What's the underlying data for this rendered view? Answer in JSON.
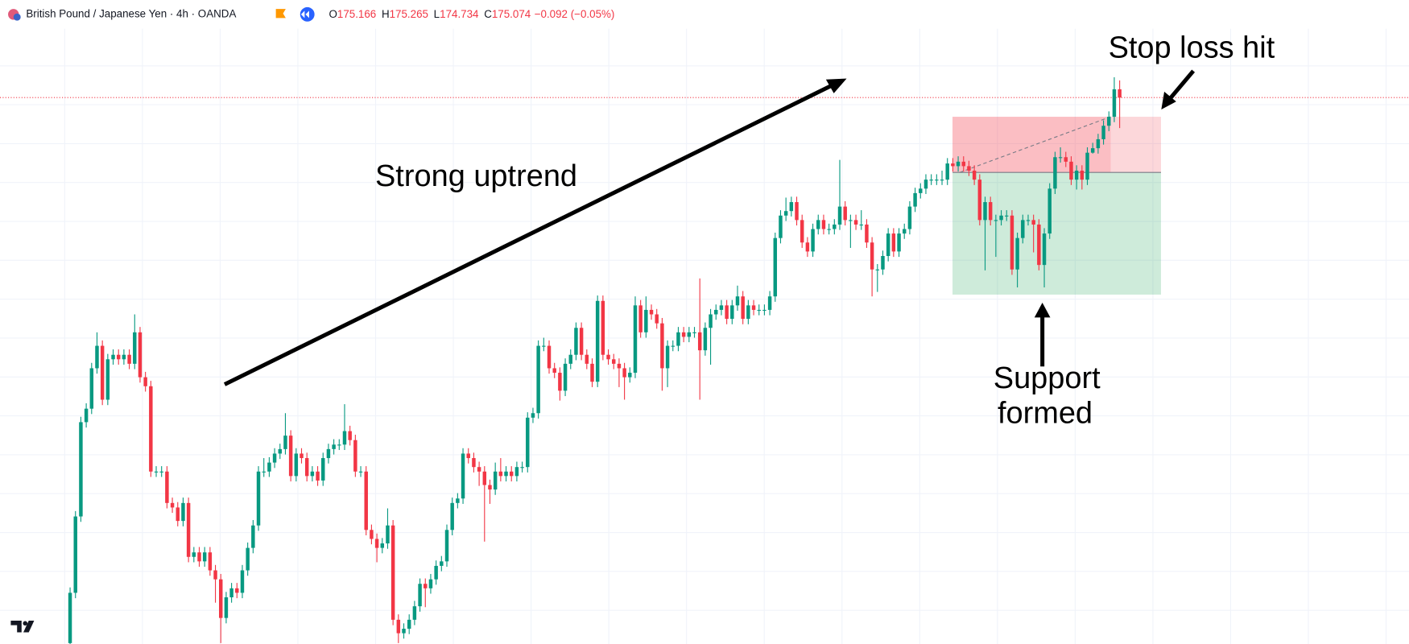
{
  "chart_data": {
    "type": "candlestick",
    "header": {
      "symbol": "British Pound / Japanese Yen · 4h · OANDA",
      "ohlc_labels": [
        "O",
        "H",
        "L",
        "C"
      ],
      "ohlc_values": [
        175.166,
        175.265,
        174.734,
        175.074
      ],
      "change": "−0.092 (−0.05%)"
    },
    "annotations": {
      "uptrend": "Strong uptrend",
      "stop": "Stop loss hit",
      "support": [
        "Support",
        "formed"
      ]
    },
    "up_color": "#089981",
    "down_color": "#f23645",
    "grid": true,
    "ylim": [
      168.99,
      176.16
    ],
    "position": {
      "stop": 174.86,
      "entry": 174.24,
      "target": 172.88
    },
    "open": [
      169.0,
      169.56,
      170.41,
      171.46,
      171.61,
      172.06,
      172.31,
      171.71,
      172.16,
      172.21,
      172.16,
      172.21,
      172.11,
      172.46,
      171.96,
      171.86,
      170.91,
      170.91,
      170.91,
      170.56,
      170.51,
      170.36,
      170.56,
      169.96,
      170.01,
      169.91,
      170.01,
      169.81,
      169.71,
      169.28,
      169.51,
      169.61,
      169.56,
      169.81,
      170.06,
      170.31,
      170.91,
      170.91,
      171.01,
      171.11,
      171.16,
      171.31,
      170.86,
      171.11,
      171.06,
      170.86,
      170.91,
      170.81,
      171.06,
      171.16,
      171.21,
      171.21,
      171.36,
      171.26,
      170.91,
      170.91,
      170.26,
      170.16,
      170.06,
      170.11,
      170.31,
      169.26,
      169.11,
      169.16,
      169.26,
      169.41,
      169.66,
      169.61,
      169.71,
      169.86,
      169.91,
      170.26,
      170.56,
      170.61,
      171.11,
      171.06,
      170.96,
      170.91,
      170.76,
      170.71,
      170.91,
      170.86,
      170.91,
      170.86,
      170.96,
      170.96,
      171.51,
      171.56,
      172.31,
      172.31,
      172.06,
      172.01,
      171.81,
      172.11,
      172.21,
      172.51,
      172.21,
      172.11,
      171.91,
      172.81,
      172.21,
      172.16,
      172.11,
      172.06,
      171.96,
      172.01,
      172.76,
      172.46,
      172.71,
      172.66,
      172.56,
      172.06,
      172.31,
      172.31,
      172.46,
      172.41,
      172.46,
      172.46,
      172.26,
      172.51,
      172.66,
      172.71,
      172.76,
      172.61,
      172.76,
      172.86,
      172.61,
      172.76,
      172.71,
      172.71,
      172.71,
      172.86,
      173.51,
      173.76,
      173.81,
      173.91,
      173.71,
      173.46,
      173.36,
      173.61,
      173.71,
      173.61,
      173.61,
      173.66,
      173.86,
      173.71,
      173.71,
      173.66,
      173.66,
      173.46,
      173.16,
      173.16,
      173.31,
      173.56,
      173.36,
      173.56,
      173.61,
      173.86,
      174.01,
      174.06,
      174.16,
      174.16,
      174.16,
      174.16,
      174.34,
      174.31,
      174.36,
      174.31,
      174.26,
      174.16,
      173.71,
      173.91,
      173.71,
      173.71,
      173.76,
      173.76,
      173.16,
      173.51,
      173.71,
      173.71,
      173.66,
      173.21,
      173.56,
      174.06,
      174.41,
      174.41,
      174.36,
      174.16,
      174.26,
      174.16,
      174.46,
      174.51,
      174.61,
      174.76,
      174.86,
      175.166
    ],
    "high": [
      169.62,
      170.47,
      171.52,
      171.67,
      172.12,
      172.46,
      172.37,
      172.22,
      172.27,
      172.27,
      172.27,
      172.27,
      172.66,
      172.52,
      172.02,
      171.92,
      170.97,
      170.97,
      170.97,
      170.62,
      170.57,
      170.62,
      170.62,
      170.07,
      170.07,
      170.07,
      170.07,
      169.87,
      169.77,
      169.57,
      169.67,
      169.67,
      169.87,
      170.12,
      170.37,
      170.97,
      171.06,
      171.07,
      171.17,
      171.22,
      171.56,
      171.37,
      171.17,
      171.17,
      171.12,
      170.97,
      170.97,
      171.12,
      171.22,
      171.27,
      171.27,
      171.66,
      171.42,
      171.32,
      170.97,
      170.97,
      170.32,
      170.22,
      170.17,
      170.5,
      170.37,
      169.32,
      169.22,
      169.32,
      169.47,
      169.72,
      169.72,
      169.77,
      169.92,
      169.97,
      170.32,
      170.62,
      170.67,
      171.17,
      171.17,
      171.12,
      171.02,
      170.97,
      170.82,
      171.01,
      171.06,
      170.97,
      170.97,
      171.02,
      171.02,
      171.57,
      171.62,
      172.37,
      172.4,
      172.37,
      172.12,
      172.07,
      172.17,
      172.27,
      172.57,
      172.57,
      172.27,
      172.17,
      172.87,
      172.87,
      172.27,
      172.22,
      172.17,
      172.12,
      172.07,
      172.86,
      172.82,
      172.86,
      172.77,
      172.72,
      172.62,
      172.37,
      172.37,
      172.52,
      172.52,
      172.52,
      172.52,
      173.06,
      172.57,
      172.72,
      172.77,
      172.82,
      172.82,
      172.82,
      172.98,
      172.92,
      172.82,
      172.82,
      172.77,
      172.77,
      172.92,
      173.57,
      173.82,
      173.96,
      173.97,
      173.97,
      173.77,
      173.52,
      173.67,
      173.77,
      173.77,
      173.67,
      173.72,
      174.38,
      173.92,
      173.77,
      173.77,
      173.82,
      173.72,
      173.52,
      173.22,
      173.37,
      173.62,
      173.62,
      173.62,
      173.67,
      173.92,
      174.07,
      174.12,
      174.22,
      174.22,
      174.22,
      174.26,
      174.4,
      174.4,
      174.42,
      174.42,
      174.37,
      174.32,
      174.22,
      173.97,
      173.97,
      173.77,
      173.82,
      173.82,
      173.82,
      173.57,
      173.77,
      173.77,
      173.77,
      173.72,
      173.62,
      174.12,
      174.47,
      174.52,
      174.47,
      174.42,
      174.32,
      174.32,
      174.52,
      174.57,
      174.67,
      174.82,
      174.92,
      175.3,
      175.265
    ],
    "low": [
      168.99,
      169.5,
      170.35,
      171.4,
      171.55,
      172.0,
      171.65,
      171.65,
      172.1,
      172.1,
      172.1,
      172.05,
      172.05,
      171.9,
      171.8,
      170.85,
      170.85,
      170.85,
      170.5,
      170.45,
      170.3,
      170.3,
      169.9,
      169.9,
      169.85,
      169.85,
      169.75,
      169.45,
      169.0,
      169.22,
      169.45,
      169.5,
      169.5,
      169.75,
      170.0,
      170.25,
      170.85,
      170.85,
      170.95,
      171.05,
      171.1,
      170.8,
      170.8,
      171.0,
      170.8,
      170.8,
      170.75,
      170.75,
      171.0,
      171.1,
      171.15,
      171.15,
      171.2,
      170.85,
      170.85,
      170.2,
      170.1,
      169.9,
      170.0,
      170.05,
      169.2,
      169.0,
      169.05,
      169.1,
      169.2,
      169.35,
      169.4,
      169.55,
      169.65,
      169.8,
      169.85,
      170.2,
      170.5,
      170.55,
      171.0,
      170.9,
      170.75,
      170.13,
      170.55,
      170.65,
      170.8,
      170.8,
      170.8,
      170.8,
      170.9,
      170.9,
      171.45,
      171.5,
      172.25,
      172.0,
      171.95,
      171.7,
      171.75,
      172.05,
      172.15,
      172.15,
      172.05,
      171.85,
      171.85,
      172.15,
      172.1,
      172.05,
      171.85,
      171.71,
      171.9,
      171.95,
      172.4,
      172.4,
      172.6,
      172.5,
      171.81,
      171.85,
      172.25,
      172.25,
      172.35,
      172.35,
      172.4,
      171.71,
      172.2,
      172.1,
      172.6,
      172.65,
      172.55,
      172.55,
      172.7,
      172.55,
      172.55,
      172.65,
      172.65,
      172.65,
      172.65,
      172.8,
      173.45,
      173.7,
      173.75,
      173.65,
      173.4,
      173.3,
      173.3,
      173.55,
      173.55,
      173.55,
      173.55,
      173.6,
      173.65,
      173.4,
      173.6,
      173.6,
      173.4,
      172.86,
      172.91,
      173.1,
      173.25,
      173.3,
      173.3,
      173.5,
      173.55,
      173.8,
      173.95,
      174.0,
      174.1,
      174.1,
      174.1,
      174.1,
      174.25,
      174.25,
      174.25,
      174.2,
      174.1,
      173.65,
      173.15,
      173.65,
      173.3,
      173.65,
      173.7,
      173.1,
      172.96,
      173.45,
      173.65,
      173.35,
      173.15,
      172.96,
      173.5,
      174.0,
      174.35,
      174.3,
      174.1,
      174.05,
      174.05,
      174.1,
      174.45,
      174.45,
      174.55,
      174.7,
      174.8,
      174.734
    ],
    "close": [
      169.56,
      170.41,
      171.46,
      171.61,
      172.06,
      172.31,
      171.71,
      172.16,
      172.21,
      172.16,
      172.21,
      172.11,
      172.46,
      171.96,
      171.86,
      170.91,
      170.91,
      170.91,
      170.56,
      170.51,
      170.36,
      170.56,
      169.96,
      170.01,
      169.91,
      170.01,
      169.81,
      169.71,
      169.28,
      169.51,
      169.61,
      169.56,
      169.81,
      170.06,
      170.31,
      170.91,
      170.91,
      171.01,
      171.11,
      171.16,
      171.31,
      170.86,
      171.11,
      171.06,
      170.86,
      170.91,
      170.81,
      171.06,
      171.16,
      171.21,
      171.21,
      171.36,
      171.26,
      170.91,
      170.91,
      170.26,
      170.16,
      170.06,
      170.11,
      170.31,
      169.26,
      169.11,
      169.16,
      169.26,
      169.41,
      169.66,
      169.61,
      169.71,
      169.86,
      169.91,
      170.26,
      170.56,
      170.61,
      171.11,
      171.06,
      170.96,
      170.91,
      170.76,
      170.71,
      170.91,
      170.86,
      170.91,
      170.86,
      170.96,
      170.96,
      171.51,
      171.56,
      172.31,
      172.31,
      172.06,
      172.01,
      171.81,
      172.11,
      172.21,
      172.51,
      172.21,
      172.11,
      171.91,
      172.81,
      172.21,
      172.16,
      172.11,
      172.06,
      171.96,
      172.01,
      172.76,
      172.46,
      172.71,
      172.66,
      172.56,
      172.06,
      172.31,
      172.31,
      172.46,
      172.41,
      172.46,
      172.46,
      172.26,
      172.51,
      172.66,
      172.71,
      172.76,
      172.61,
      172.76,
      172.86,
      172.61,
      172.76,
      172.71,
      172.71,
      172.71,
      172.86,
      173.51,
      173.76,
      173.81,
      173.91,
      173.71,
      173.46,
      173.36,
      173.61,
      173.71,
      173.61,
      173.61,
      173.66,
      173.86,
      173.71,
      173.71,
      173.66,
      173.66,
      173.46,
      173.16,
      173.16,
      173.31,
      173.56,
      173.36,
      173.56,
      173.61,
      173.86,
      174.01,
      174.06,
      174.16,
      174.16,
      174.16,
      174.16,
      174.34,
      174.31,
      174.36,
      174.31,
      174.26,
      174.16,
      173.71,
      173.91,
      173.71,
      173.71,
      173.76,
      173.76,
      173.16,
      173.51,
      173.71,
      173.71,
      173.66,
      173.21,
      173.56,
      174.06,
      174.41,
      174.41,
      174.36,
      174.16,
      174.26,
      174.16,
      174.46,
      174.51,
      174.61,
      174.76,
      174.86,
      175.166,
      175.074
    ]
  }
}
